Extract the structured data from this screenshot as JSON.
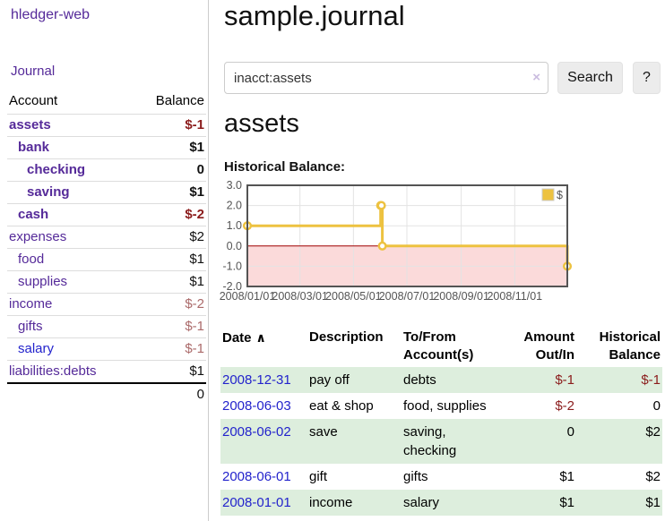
{
  "app": {
    "brand": "hledger-web",
    "nav_journal": "Journal"
  },
  "sidebar": {
    "col_account": "Account",
    "col_balance": "Balance",
    "accounts": [
      {
        "name": "assets",
        "indent": 0,
        "bold": true,
        "balance": "$-1",
        "balance_style": "neg-strong"
      },
      {
        "name": "bank",
        "indent": 1,
        "bold": true,
        "balance": "$1",
        "balance_style": "pos"
      },
      {
        "name": "checking",
        "indent": 2,
        "bold": true,
        "balance": "0",
        "balance_style": "pos"
      },
      {
        "name": "saving",
        "indent": 2,
        "bold": true,
        "balance": "$1",
        "balance_style": "pos"
      },
      {
        "name": "cash",
        "indent": 1,
        "bold": true,
        "balance": "$-2",
        "balance_style": "neg-strong"
      },
      {
        "name": "expenses",
        "indent": 0,
        "bold": false,
        "balance": "$2",
        "balance_style": "pos"
      },
      {
        "name": "food",
        "indent": 1,
        "bold": false,
        "balance": "$1",
        "balance_style": "pos"
      },
      {
        "name": "supplies",
        "indent": 1,
        "bold": false,
        "balance": "$1",
        "balance_style": "pos"
      },
      {
        "name": "income",
        "indent": 0,
        "bold": false,
        "balance": "$-2",
        "balance_style": "neg-soft"
      },
      {
        "name": "gifts",
        "indent": 1,
        "bold": false,
        "balance": "$-1",
        "balance_style": "neg-soft"
      },
      {
        "name": "salary",
        "indent": 1,
        "bold": false,
        "link_style": "blue",
        "balance": "$-1",
        "balance_style": "neg-soft"
      },
      {
        "name": "liabilities:debts",
        "indent": 0,
        "bold": false,
        "balance": "$1",
        "balance_style": "pos"
      }
    ],
    "total": "0"
  },
  "header": {
    "title": "sample.journal"
  },
  "search": {
    "value": "inacct:assets",
    "clear_icon": "×",
    "button": "Search",
    "help_button": "?"
  },
  "account_page": {
    "title": "assets",
    "chart_label": "Historical Balance:"
  },
  "chart_data": {
    "type": "line",
    "style": "step-after",
    "title": "Historical Balance",
    "xlim": [
      "2008-01-01",
      "2008-12-31"
    ],
    "ylim": [
      -2,
      3
    ],
    "y_ticks": [
      3,
      2,
      1,
      0,
      -1,
      -2
    ],
    "x_ticks": [
      {
        "date": "2008-01-01",
        "label": "2008/01/01"
      },
      {
        "date": "2008-03-01",
        "label": "2008/03/01"
      },
      {
        "date": "2008-05-01",
        "label": "2008/05/01"
      },
      {
        "date": "2008-07-01",
        "label": "2008/07/01"
      },
      {
        "date": "2008-09-01",
        "label": "2008/09/01"
      },
      {
        "date": "2008-11-01",
        "label": "2008/11/01"
      }
    ],
    "series": [
      {
        "name": "$",
        "color": "#edc240",
        "points": [
          [
            "2008-01-01",
            1
          ],
          [
            "2008-06-01",
            2
          ],
          [
            "2008-06-02",
            2
          ],
          [
            "2008-06-03",
            0
          ],
          [
            "2008-12-31",
            -1
          ]
        ]
      }
    ],
    "legend": {
      "label": "$",
      "position": "top-right"
    },
    "grid": true,
    "grid_color": "#e3e3e3",
    "axis_color": "#545454",
    "negative_region_fill": "#fbdada",
    "zero_line_color": "#a40000"
  },
  "register": {
    "col_date": "Date",
    "sort_icon": "∧",
    "col_description": "Description",
    "col_accounts": "To/From Account(s)",
    "col_amount": "Amount Out/In",
    "col_balance": "Historical Balance",
    "rows": [
      {
        "date": "2008-12-31",
        "description": "pay off",
        "accounts": "debts",
        "amount": "$-1",
        "amount_neg": true,
        "balance": "$-1",
        "balance_neg": true
      },
      {
        "date": "2008-06-03",
        "description": "eat & shop",
        "accounts": "food, supplies",
        "amount": "$-2",
        "amount_neg": true,
        "balance": "0",
        "balance_neg": false
      },
      {
        "date": "2008-06-02",
        "description": "save",
        "accounts": "saving, checking",
        "amount": "0",
        "amount_neg": false,
        "balance": "$2",
        "balance_neg": false
      },
      {
        "date": "2008-06-01",
        "description": "gift",
        "accounts": "gifts",
        "amount": "$1",
        "amount_neg": false,
        "balance": "$2",
        "balance_neg": false
      },
      {
        "date": "2008-01-01",
        "description": "income",
        "accounts": "salary",
        "amount": "$1",
        "amount_neg": false,
        "balance": "$1",
        "balance_neg": false
      }
    ]
  },
  "colors": {
    "link_purple": "#552a99",
    "link_blue": "#2323cc",
    "negative_strong": "#8b1c1c",
    "negative_soft": "#ab6a6a",
    "row_green": "#ddeedd",
    "series_yellow": "#edc240"
  }
}
